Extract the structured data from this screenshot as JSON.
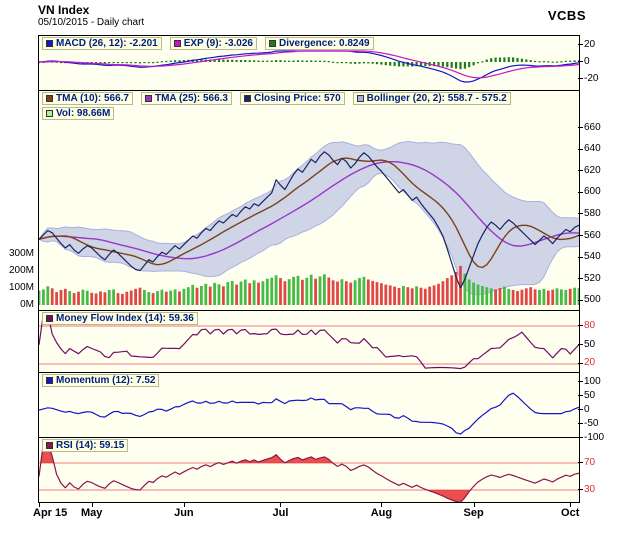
{
  "header": {
    "title": "VN Index",
    "subtitle": "05/10/2015 - Daily chart",
    "brand": "VCBS"
  },
  "panels": {
    "macd": {
      "legend": [
        {
          "label": "MACD (26, 12): -2.201",
          "color": "#1414C8"
        },
        {
          "label": "EXP (9): -3.026",
          "color": "#C814C8"
        },
        {
          "label": "Divergence: 0.8249",
          "color": "#1E7D1E"
        }
      ],
      "yticks": [
        {
          "label": "20",
          "v": 20,
          "color": "#000000"
        },
        {
          "label": "0",
          "v": 0,
          "color": "#000000"
        },
        {
          "label": "-20",
          "v": -20,
          "color": "#000000"
        }
      ]
    },
    "price": {
      "legend": [
        {
          "label": "TMA (10): 566.7",
          "color": "#7A421A"
        },
        {
          "label": "TMA (25): 566.3",
          "color": "#9A35C8"
        },
        {
          "label": "Closing Price: 570",
          "color": "#182460"
        },
        {
          "label": "Bollinger (20, 2): 558.7 - 575.2",
          "color": "#AAB0E0"
        }
      ],
      "legend2": [
        {
          "label": "Vol: 98.66M",
          "color": "#A6F0A6"
        }
      ],
      "yticks": [
        {
          "label": "660",
          "v": 660
        },
        {
          "label": "640",
          "v": 640
        },
        {
          "label": "620",
          "v": 620
        },
        {
          "label": "600",
          "v": 600
        },
        {
          "label": "580",
          "v": 580
        },
        {
          "label": "560",
          "v": 560
        },
        {
          "label": "540",
          "v": 540
        },
        {
          "label": "520",
          "v": 520
        },
        {
          "label": "500",
          "v": 500
        }
      ],
      "volume_ticks": [
        {
          "label": "300M",
          "v": 300
        },
        {
          "label": "200M",
          "v": 200
        },
        {
          "label": "100M",
          "v": 100
        },
        {
          "label": "0M",
          "v": 0
        }
      ]
    },
    "mfi": {
      "legend": [
        {
          "label": "Money Flow Index (14): 59.36",
          "color": "#6E0E64"
        }
      ],
      "yticks": [
        {
          "label": "80",
          "v": 80,
          "color": "#E03030"
        },
        {
          "label": "50",
          "v": 50,
          "color": "#000000"
        },
        {
          "label": "20",
          "v": 20,
          "color": "#E03030"
        }
      ],
      "thresholds": [
        80,
        20
      ]
    },
    "momentum": {
      "legend": [
        {
          "label": "Momentum (12): 7.52",
          "color": "#1414C8"
        }
      ],
      "yticks": [
        {
          "label": "100",
          "v": 100
        },
        {
          "label": "50",
          "v": 50
        },
        {
          "label": "0",
          "v": 0
        },
        {
          "label": "-50",
          "v": -50
        },
        {
          "label": "-100",
          "v": -100
        }
      ]
    },
    "rsi": {
      "legend": [
        {
          "label": "RSI (14): 59.15",
          "color": "#8B1550"
        }
      ],
      "yticks": [
        {
          "label": "70",
          "v": 70,
          "color": "#E03030"
        },
        {
          "label": "30",
          "v": 30,
          "color": "#E03030"
        }
      ],
      "thresholds": [
        70,
        30
      ]
    }
  },
  "chart_data": {
    "type": "multi-panel-stock",
    "title": "VN Index — 05/10/2015 - Daily chart",
    "x_months": [
      {
        "label": "Apr 15",
        "i": 0
      },
      {
        "label": "May",
        "i": 12
      },
      {
        "label": "Jun",
        "i": 33
      },
      {
        "label": "Jul",
        "i": 55
      },
      {
        "label": "Aug",
        "i": 78
      },
      {
        "label": "Sep",
        "i": 99
      },
      {
        "label": "Oct",
        "i": 121
      }
    ],
    "close": [
      557,
      561,
      565,
      563,
      558,
      553,
      549,
      552,
      547,
      544,
      548,
      551,
      549,
      545,
      541,
      538,
      543,
      547,
      544,
      540,
      536,
      532,
      529,
      528,
      533,
      538,
      536,
      541,
      545,
      543,
      547,
      551,
      548,
      552,
      556,
      560,
      558,
      563,
      567,
      565,
      570,
      574,
      572,
      576,
      580,
      578,
      583,
      587,
      585,
      590,
      588,
      592,
      596,
      600,
      612,
      607,
      603,
      610,
      617,
      622,
      619,
      625,
      631,
      628,
      634,
      638,
      635,
      630,
      626,
      632,
      629,
      623,
      627,
      633,
      637,
      634,
      629,
      624,
      620,
      615,
      610,
      605,
      600,
      603,
      598,
      593,
      596,
      590,
      585,
      580,
      575,
      568,
      560,
      548,
      535,
      522,
      512,
      520,
      531,
      542,
      553,
      561,
      568,
      573,
      570,
      566,
      571,
      575,
      572,
      568,
      564,
      560,
      556,
      552,
      556,
      560,
      557,
      553,
      558,
      562,
      566,
      564,
      568,
      570
    ],
    "volume_m": [
      85,
      92,
      110,
      98,
      76,
      88,
      95,
      82,
      70,
      78,
      90,
      84,
      72,
      68,
      80,
      75,
      88,
      92,
      70,
      65,
      78,
      85,
      95,
      102,
      88,
      76,
      70,
      82,
      90,
      78,
      85,
      92,
      80,
      95,
      105,
      118,
      102,
      112,
      125,
      108,
      130,
      122,
      110,
      135,
      142,
      120,
      138,
      150,
      128,
      145,
      132,
      140,
      155,
      160,
      175,
      158,
      140,
      152,
      165,
      172,
      148,
      160,
      178,
      155,
      168,
      180,
      162,
      145,
      138,
      152,
      140,
      132,
      145,
      158,
      165,
      150,
      142,
      135,
      128,
      120,
      115,
      108,
      100,
      112,
      105,
      98,
      110,
      102,
      95,
      108,
      115,
      125,
      140,
      158,
      175,
      195,
      230,
      185,
      150,
      132,
      120,
      112,
      105,
      98,
      92,
      100,
      108,
      95,
      88,
      82,
      90,
      98,
      105,
      92,
      88,
      95,
      85,
      90,
      98,
      92,
      88,
      95,
      102,
      98.66
    ],
    "indicators": {
      "macd": {
        "fast": 12,
        "slow": 26,
        "signal": 9,
        "current_macd": -2.201,
        "current_exp": -3.026,
        "current_divergence": 0.8249
      },
      "tma": {
        "periods": [
          10,
          25
        ],
        "current": [
          566.7,
          566.3
        ]
      },
      "bollinger": {
        "period": 20,
        "stdev": 2,
        "current_range": [
          558.7,
          575.2
        ]
      },
      "close_current": 570,
      "volume_current": "98.66M",
      "mfi": {
        "period": 14,
        "current": 59.36,
        "ylim": [
          0,
          100
        ]
      },
      "momentum": {
        "period": 12,
        "current": 7.52,
        "ylim": [
          -100,
          100
        ]
      },
      "rsi": {
        "period": 14,
        "current": 59.15,
        "ylim": [
          0,
          100
        ]
      },
      "price_ylim": [
        495,
        665
      ],
      "macd_yticks": [
        20,
        0,
        -20
      ]
    },
    "colors": {
      "volume_up": "#46BB46",
      "volume_down": "#E04848",
      "threshold_line": "#F07878",
      "rsi_fill": "#E83030",
      "panel_background": "#FFFFF0"
    }
  }
}
